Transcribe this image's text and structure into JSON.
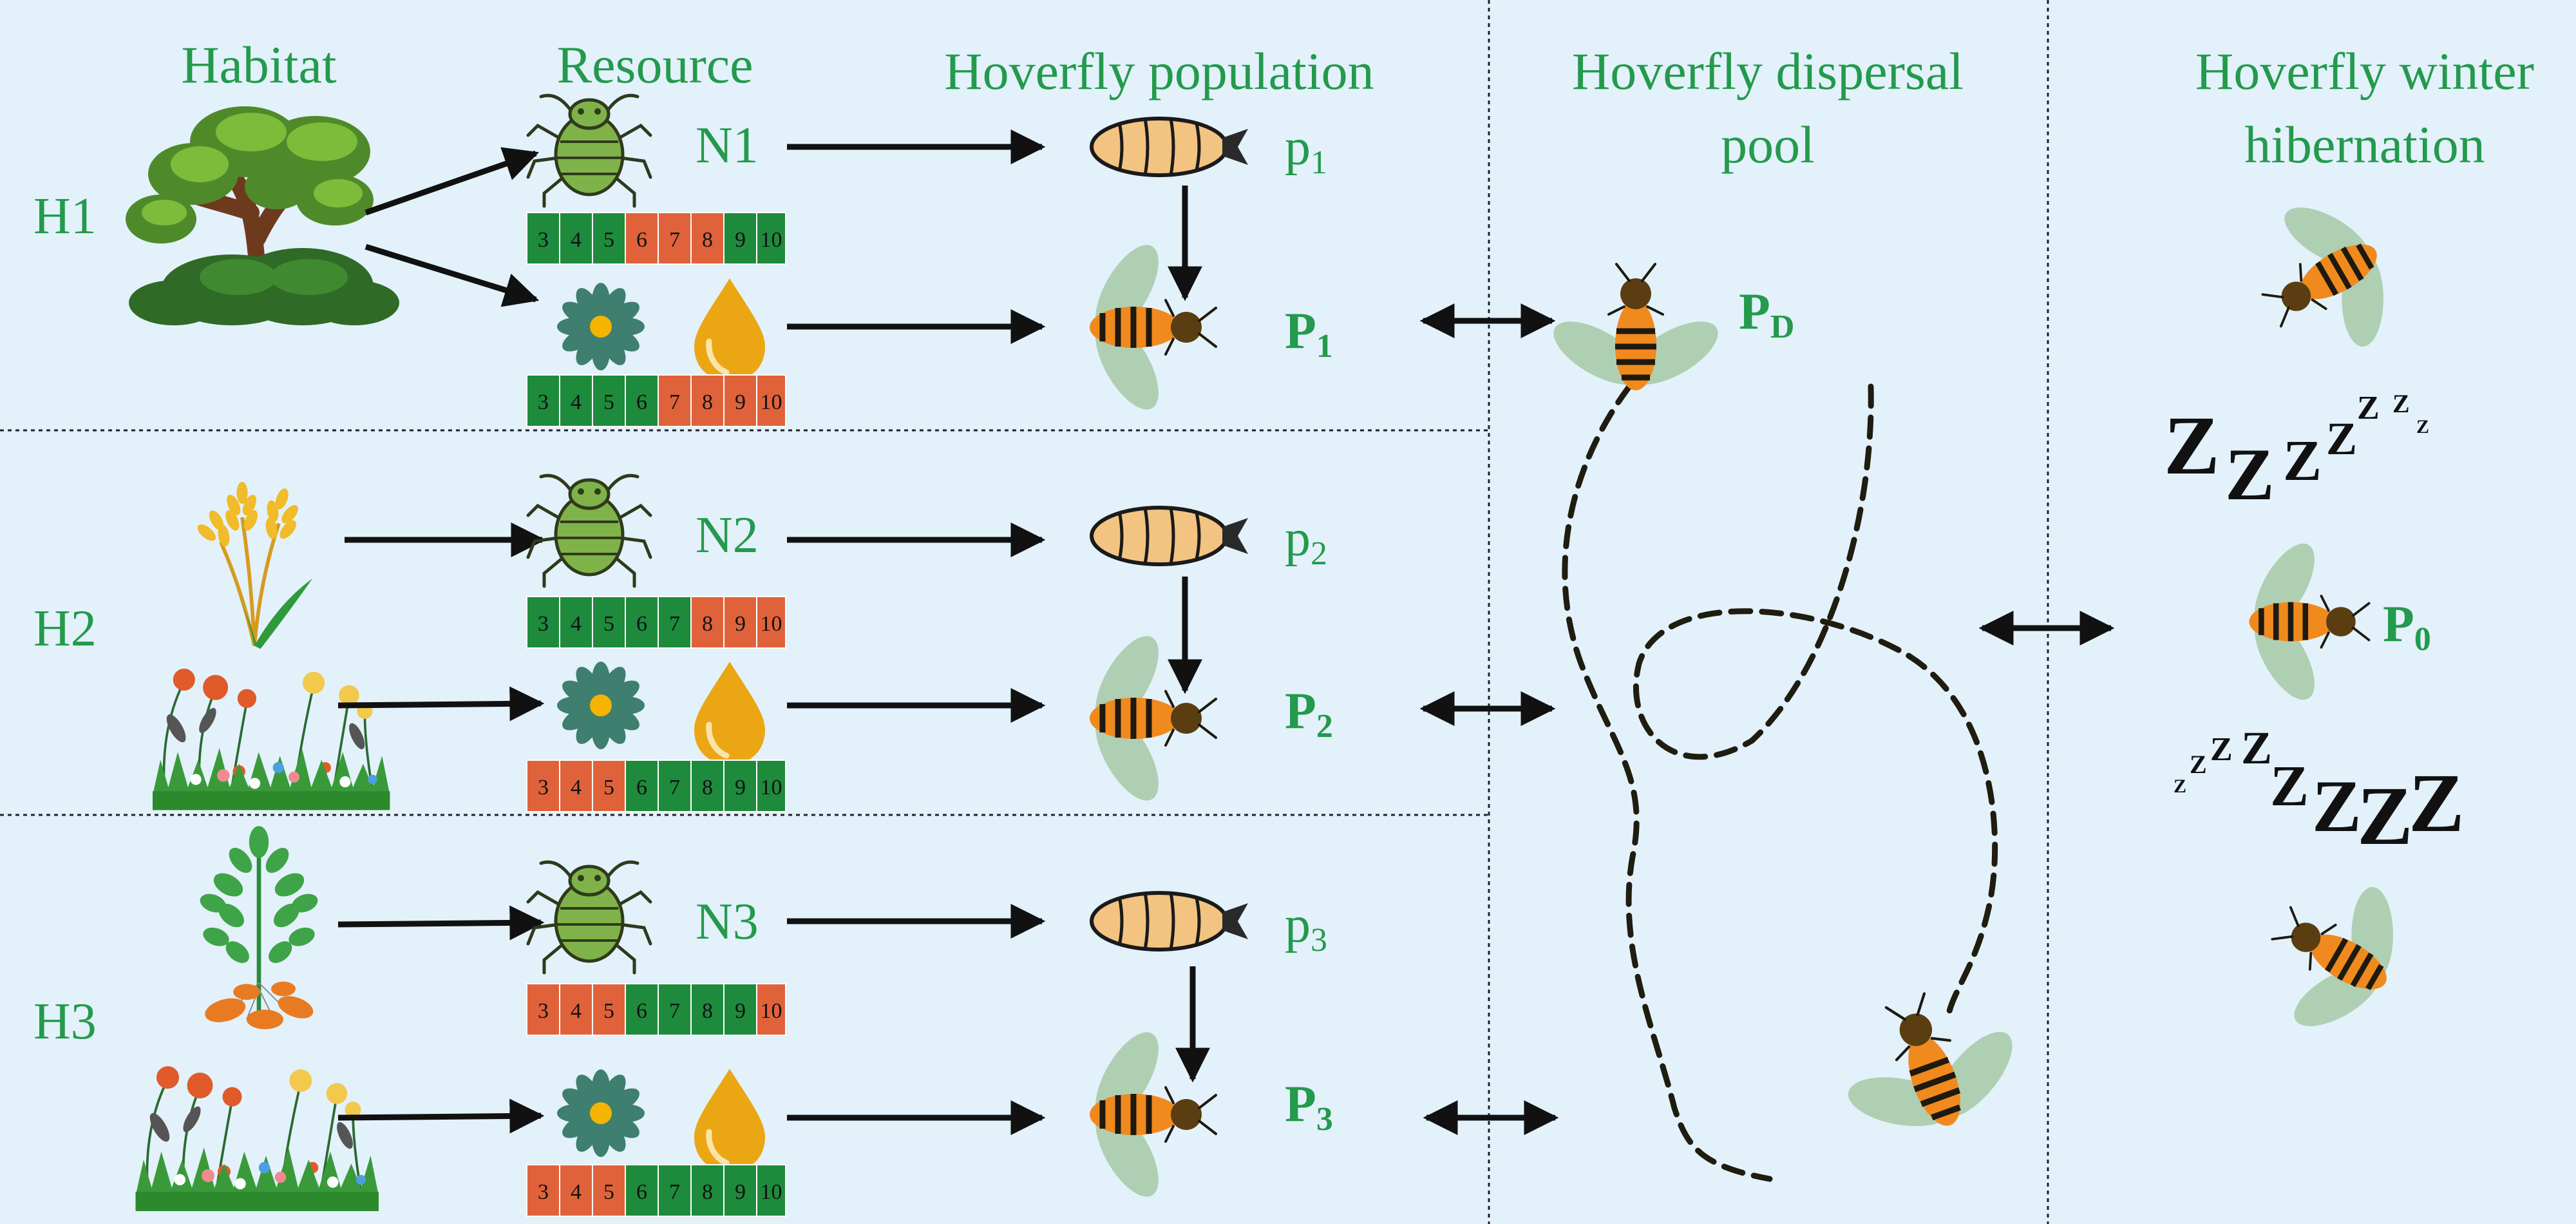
{
  "headers": {
    "habitat": "Habitat",
    "resource": "Resource",
    "population": "Hoverfly population",
    "dispersal_line1": "Hoverfly dispersal",
    "dispersal_line2": "pool",
    "winter_line1": "Hoverfly winter",
    "winter_line2": "hibernation"
  },
  "habitats": [
    {
      "label": "H1",
      "habitat_icons": [
        "tree-icon"
      ],
      "prey": {
        "label": "N",
        "index": "1",
        "icon": "aphid-icon"
      },
      "larva": {
        "label": "p",
        "index": "1",
        "icon": "larva-icon"
      },
      "adult": {
        "label": "P",
        "index": "1",
        "icon": "hoverfly-icon"
      },
      "prey_months": [
        {
          "m": "3",
          "color": "#1e8a3c"
        },
        {
          "m": "4",
          "color": "#1e8a3c"
        },
        {
          "m": "5",
          "color": "#1e8a3c"
        },
        {
          "m": "6",
          "color": "#e0623a"
        },
        {
          "m": "7",
          "color": "#e0623a"
        },
        {
          "m": "8",
          "color": "#e0623a"
        },
        {
          "m": "9",
          "color": "#1e8a3c"
        },
        {
          "m": "10",
          "color": "#1e8a3c"
        }
      ],
      "flower_months": [
        {
          "m": "3",
          "color": "#1e8a3c"
        },
        {
          "m": "4",
          "color": "#1e8a3c"
        },
        {
          "m": "5",
          "color": "#1e8a3c"
        },
        {
          "m": "6",
          "color": "#1e8a3c"
        },
        {
          "m": "7",
          "color": "#e0623a"
        },
        {
          "m": "8",
          "color": "#e0623a"
        },
        {
          "m": "9",
          "color": "#e0623a"
        },
        {
          "m": "10",
          "color": "#e0623a"
        }
      ]
    },
    {
      "label": "H2",
      "habitat_icons": [
        "wheat-icon",
        "wildflower-meadow-icon"
      ],
      "prey": {
        "label": "N",
        "index": "2",
        "icon": "aphid-icon"
      },
      "larva": {
        "label": "p",
        "index": "2",
        "icon": "larva-icon"
      },
      "adult": {
        "label": "P",
        "index": "2",
        "icon": "hoverfly-icon"
      },
      "prey_months": [
        {
          "m": "3",
          "color": "#1e8a3c"
        },
        {
          "m": "4",
          "color": "#1e8a3c"
        },
        {
          "m": "5",
          "color": "#1e8a3c"
        },
        {
          "m": "6",
          "color": "#1e8a3c"
        },
        {
          "m": "7",
          "color": "#1e8a3c"
        },
        {
          "m": "8",
          "color": "#e0623a"
        },
        {
          "m": "9",
          "color": "#e0623a"
        },
        {
          "m": "10",
          "color": "#e0623a"
        }
      ],
      "flower_months": [
        {
          "m": "3",
          "color": "#e0623a"
        },
        {
          "m": "4",
          "color": "#e0623a"
        },
        {
          "m": "5",
          "color": "#e0623a"
        },
        {
          "m": "6",
          "color": "#1e8a3c"
        },
        {
          "m": "7",
          "color": "#1e8a3c"
        },
        {
          "m": "8",
          "color": "#1e8a3c"
        },
        {
          "m": "9",
          "color": "#1e8a3c"
        },
        {
          "m": "10",
          "color": "#1e8a3c"
        }
      ]
    },
    {
      "label": "H3",
      "habitat_icons": [
        "potato-plant-icon",
        "wildflower-meadow-icon"
      ],
      "prey": {
        "label": "N",
        "index": "3",
        "icon": "aphid-icon"
      },
      "larva": {
        "label": "p",
        "index": "3",
        "icon": "larva-icon"
      },
      "adult": {
        "label": "P",
        "index": "3",
        "icon": "hoverfly-icon"
      },
      "prey_months": [
        {
          "m": "3",
          "color": "#e0623a"
        },
        {
          "m": "4",
          "color": "#e0623a"
        },
        {
          "m": "5",
          "color": "#e0623a"
        },
        {
          "m": "6",
          "color": "#1e8a3c"
        },
        {
          "m": "7",
          "color": "#1e8a3c"
        },
        {
          "m": "8",
          "color": "#1e8a3c"
        },
        {
          "m": "9",
          "color": "#1e8a3c"
        },
        {
          "m": "10",
          "color": "#e0623a"
        }
      ],
      "flower_months": [
        {
          "m": "3",
          "color": "#e0623a"
        },
        {
          "m": "4",
          "color": "#e0623a"
        },
        {
          "m": "5",
          "color": "#e0623a"
        },
        {
          "m": "6",
          "color": "#1e8a3c"
        },
        {
          "m": "7",
          "color": "#1e8a3c"
        },
        {
          "m": "8",
          "color": "#1e8a3c"
        },
        {
          "m": "9",
          "color": "#1e8a3c"
        },
        {
          "m": "10",
          "color": "#1e8a3c"
        }
      ]
    }
  ],
  "dispersal": {
    "label": "P",
    "index": "D"
  },
  "hibernation": {
    "label": "P",
    "index": "0"
  },
  "icons": {
    "flower": "daisy-flower-icon",
    "nectar": "nectar-drop-icon",
    "sleep": "zzz-sleep-icon"
  },
  "colors": {
    "background": "#e3f1fb",
    "text_green": "#239a4c",
    "cell_green": "#1e8a3c",
    "cell_orange": "#e0623a"
  }
}
